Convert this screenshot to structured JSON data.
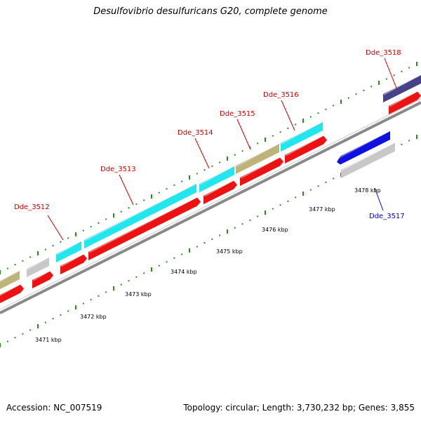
{
  "title": "Desulfovibrio desulfuricans G20, complete genome",
  "footer": {
    "accession": "Accession: NC_007519",
    "topology": "Topology: circular; Length: 3,730,232 bp; Genes: 3,855"
  },
  "colors": {
    "tick_green": "#2a8a1e",
    "gene_label_red": "#cc0000",
    "gene_label_blue": "#0000cc",
    "cyan": "#22e6ee",
    "olive": "#bcb47a",
    "grey": "#c8c8c8",
    "red": "#ee1111",
    "blue": "#1010e0",
    "navy": "#46428a",
    "backbone": "#8a8a8a"
  },
  "scale": {
    "labels": [
      "3471 kbp",
      "3472 kbp",
      "3473 kbp",
      "3474 kbp",
      "3475 kbp",
      "3476 kbp",
      "3477 kbp",
      "3478 kbp"
    ]
  },
  "genes": [
    {
      "name": "Dde_3512",
      "color": "red"
    },
    {
      "name": "Dde_3513",
      "color": "red"
    },
    {
      "name": "Dde_3514",
      "color": "red"
    },
    {
      "name": "Dde_3515",
      "color": "red"
    },
    {
      "name": "Dde_3516",
      "color": "red"
    },
    {
      "name": "Dde_3517",
      "color": "blue"
    },
    {
      "name": "Dde_3518",
      "color": "red"
    }
  ]
}
